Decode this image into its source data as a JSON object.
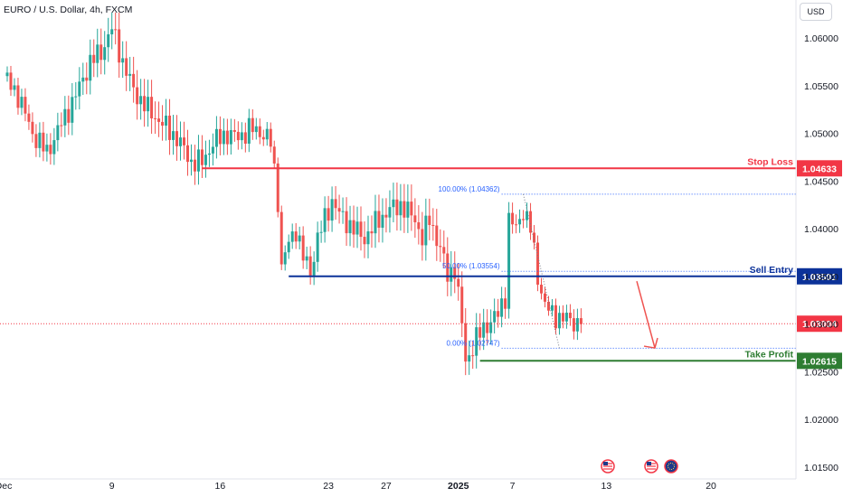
{
  "header": {
    "title": "EURO / U.S. Dollar, 4h, FXCM",
    "currency_button": "USD"
  },
  "colors": {
    "up": "#26a69a",
    "down": "#ef5350",
    "stop_loss": "#f23645",
    "sell_entry": "#0c3299",
    "take_profit": "#2e7d32",
    "current_price": "#f23645",
    "fib": "#2962ff"
  },
  "chart_data": {
    "type": "candlestick",
    "symbol": "EURUSD",
    "timeframe": "4h",
    "ylim": [
      1.0125,
      1.065
    ],
    "y_ticks": [
      "1.06000",
      "1.05500",
      "1.05000",
      "1.04500",
      "1.04000",
      "1.03500",
      "1.03000",
      "1.02500",
      "1.02000",
      "1.01500"
    ],
    "x_ticks": [
      "Dec",
      "9",
      "16",
      "23",
      "27",
      "2025",
      "7",
      "13",
      "20"
    ],
    "x_tick_index": [
      0,
      30,
      60,
      90,
      106,
      126,
      141,
      167,
      196
    ],
    "x_max_index": 222,
    "close_anchors": [
      [
        0,
        1.056
      ],
      [
        4,
        1.054
      ],
      [
        8,
        1.05
      ],
      [
        12,
        1.048
      ],
      [
        16,
        1.051
      ],
      [
        20,
        1.054
      ],
      [
        24,
        1.0575
      ],
      [
        27,
        1.0585
      ],
      [
        30,
        1.061
      ],
      [
        33,
        1.0575
      ],
      [
        36,
        1.0545
      ],
      [
        40,
        1.0525
      ],
      [
        44,
        1.051
      ],
      [
        48,
        1.0495
      ],
      [
        52,
        1.047
      ],
      [
        55,
        1.047
      ],
      [
        58,
        1.049
      ],
      [
        62,
        1.05
      ],
      [
        65,
        1.0495
      ],
      [
        68,
        1.0505
      ],
      [
        72,
        1.05
      ],
      [
        74,
        1.049
      ],
      [
        76,
        1.043
      ],
      [
        77,
        1.036
      ],
      [
        79,
        1.0385
      ],
      [
        81,
        1.04
      ],
      [
        83,
        1.037
      ],
      [
        85,
        1.0355
      ],
      [
        87,
        1.039
      ],
      [
        89,
        1.041
      ],
      [
        91,
        1.043
      ],
      [
        93,
        1.0415
      ],
      [
        97,
        1.04
      ],
      [
        100,
        1.039
      ],
      [
        104,
        1.041
      ],
      [
        107,
        1.042
      ],
      [
        110,
        1.0425
      ],
      [
        114,
        1.041
      ],
      [
        116,
        1.039
      ],
      [
        118,
        1.041
      ],
      [
        121,
        1.038
      ],
      [
        123,
        1.035
      ],
      [
        125,
        1.036
      ],
      [
        127,
        1.03
      ],
      [
        128,
        1.026
      ],
      [
        131,
        1.0285
      ],
      [
        134,
        1.03
      ],
      [
        137,
        1.031
      ],
      [
        139,
        1.033
      ],
      [
        140,
        1.041
      ],
      [
        142,
        1.04
      ],
      [
        144,
        1.042
      ],
      [
        146,
        1.04
      ],
      [
        148,
        1.035
      ],
      [
        150,
        1.032
      ],
      [
        152,
        1.031
      ],
      [
        156,
        1.0305
      ],
      [
        160,
        1.03
      ]
    ],
    "levels": [
      {
        "name": "Stop Loss",
        "value": 1.04633,
        "label": "1.04633"
      },
      {
        "name": "Sell Entry",
        "value": 1.03501,
        "label": "1.03501"
      },
      {
        "name": "Take Profit",
        "value": 1.02615,
        "label": "1.02615"
      }
    ],
    "current_price": {
      "value": 1.03004,
      "label": "1.03004"
    },
    "fibonacci": [
      {
        "label": "100.00% (1.04362)",
        "value": 1.04362
      },
      {
        "label": "50.00% (1.03554)",
        "value": 1.03554
      },
      {
        "label": "0.00% (1.02747)",
        "value": 1.02747
      }
    ],
    "annotations": [
      "downward arrow toward Take Profit"
    ]
  },
  "labels": {
    "stop_loss": "Stop Loss",
    "sell_entry": "Sell Entry",
    "take_profit": "Take Profit"
  },
  "events": [
    "us-flag-icon",
    "us-flag-icon",
    "eu-flag-icon"
  ]
}
